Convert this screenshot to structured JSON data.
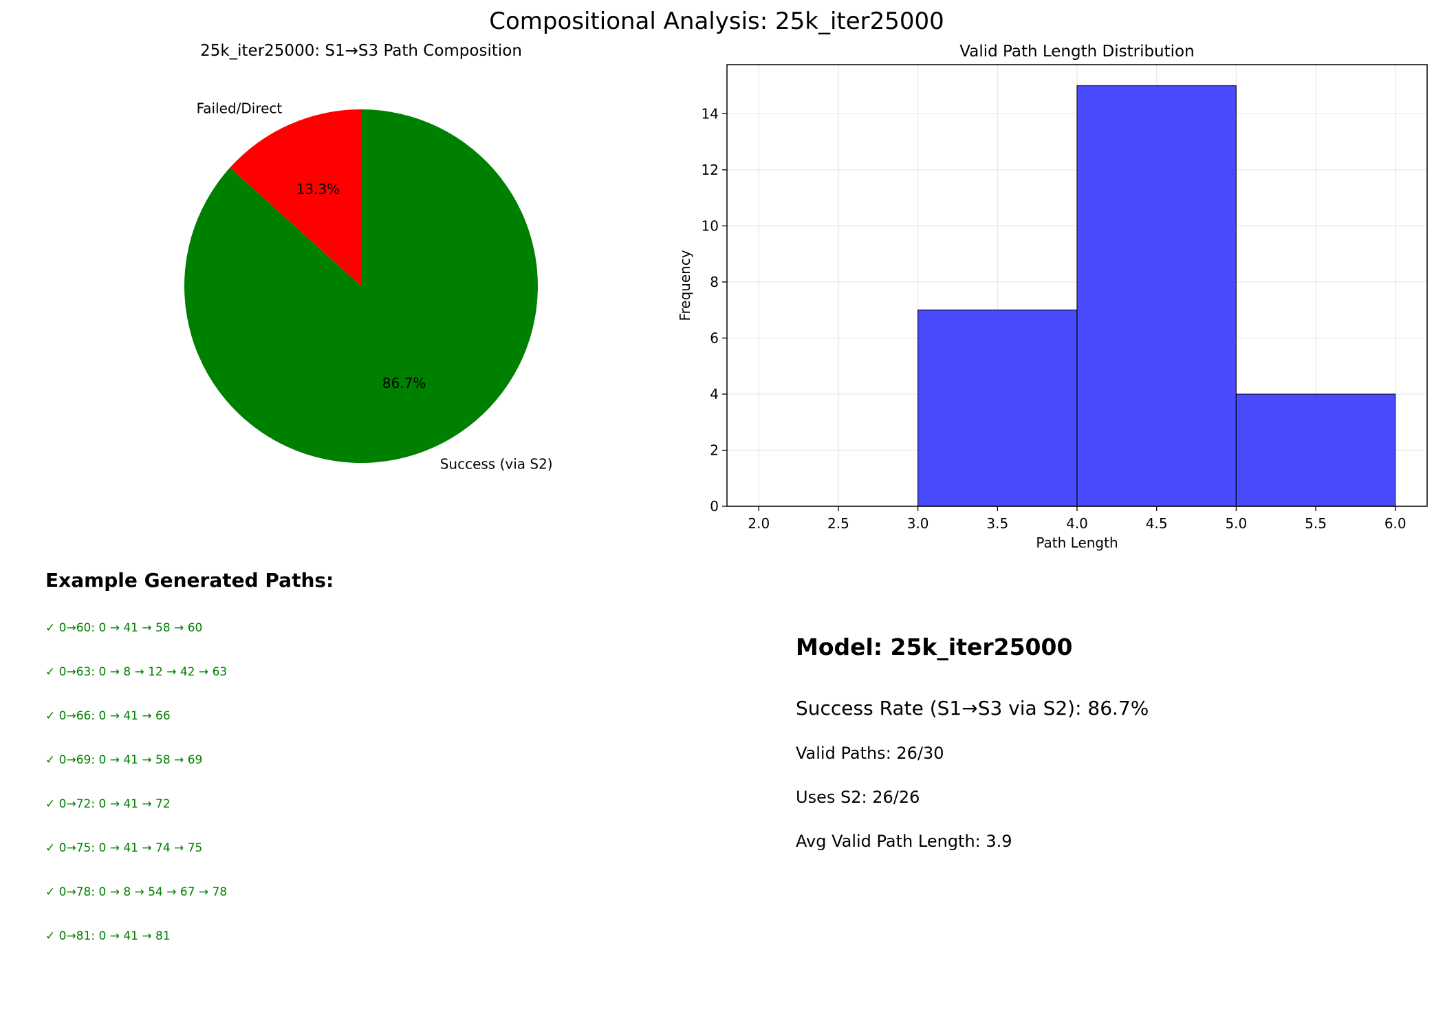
{
  "figure": {
    "suptitle": "Compositional Analysis: 25k_iter25000"
  },
  "chart_data": [
    {
      "type": "pie",
      "title": "25k_iter25000: S1→S3 Path Composition",
      "slices": [
        {
          "label": "Failed/Direct",
          "value": 13.3,
          "pct_label": "13.3%",
          "color": "#ff0000"
        },
        {
          "label": "Success (via S2)",
          "value": 86.7,
          "pct_label": "86.7%",
          "color": "#008000"
        }
      ],
      "start_angle_deg": 90,
      "direction": "counterclockwise"
    },
    {
      "type": "bar",
      "title": "Valid Path Length Distribution",
      "xlabel": "Path Length",
      "ylabel": "Frequency",
      "bins": [
        {
          "x0": 2,
          "x1": 3,
          "count": 0
        },
        {
          "x0": 3,
          "x1": 4,
          "count": 7
        },
        {
          "x0": 4,
          "x1": 5,
          "count": 15
        },
        {
          "x0": 5,
          "x1": 6,
          "count": 4
        }
      ],
      "xlim": [
        1.8,
        6.2
      ],
      "ylim": [
        0,
        15.75
      ],
      "xticks": [
        "2.0",
        "2.5",
        "3.0",
        "3.5",
        "4.0",
        "4.5",
        "5.0",
        "5.5",
        "6.0"
      ],
      "yticks": [
        "0",
        "2",
        "4",
        "6",
        "8",
        "10",
        "12",
        "14"
      ],
      "bar_color": "#4a4aff",
      "grid": true
    }
  ],
  "examples": {
    "title": "Example Generated Paths:",
    "items": [
      "✓ 0→60: 0 → 41 → 58 → 60",
      "✓ 0→63: 0 → 8 → 12 → 42 → 63",
      "✓ 0→66: 0 → 41 → 66",
      "✓ 0→69: 0 → 41 → 58 → 69",
      "✓ 0→72: 0 → 41 → 72",
      "✓ 0→75: 0 → 41 → 74 → 75",
      "✓ 0→78: 0 → 8 → 54 → 67 → 78",
      "✓ 0→81: 0 → 41 → 81"
    ]
  },
  "stats": {
    "model": "Model: 25k_iter25000",
    "success_rate": "Success Rate (S1→S3 via S2): 86.7%",
    "valid_paths": "Valid Paths: 26/30",
    "uses_s2": "Uses S2: 26/26",
    "avg_length": "Avg Valid Path Length: 3.9"
  }
}
